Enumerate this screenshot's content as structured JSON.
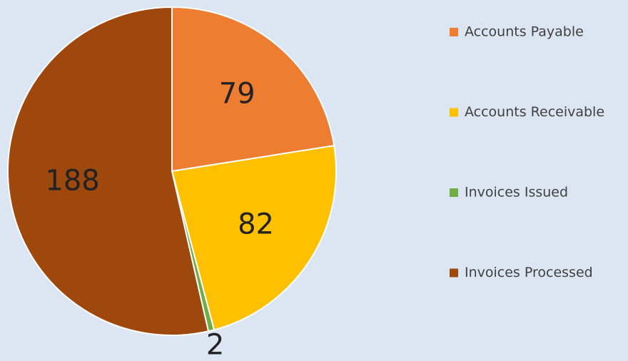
{
  "chart_data": {
    "type": "pie",
    "categories": [
      "Accounts Payable",
      "Accounts Receivable",
      "Invoices Issued",
      "Invoices Processed"
    ],
    "values": [
      79,
      82,
      2,
      188
    ],
    "colors": [
      "#ed7d31",
      "#ffc000",
      "#70ad47",
      "#9e480e"
    ],
    "legend": "right"
  }
}
